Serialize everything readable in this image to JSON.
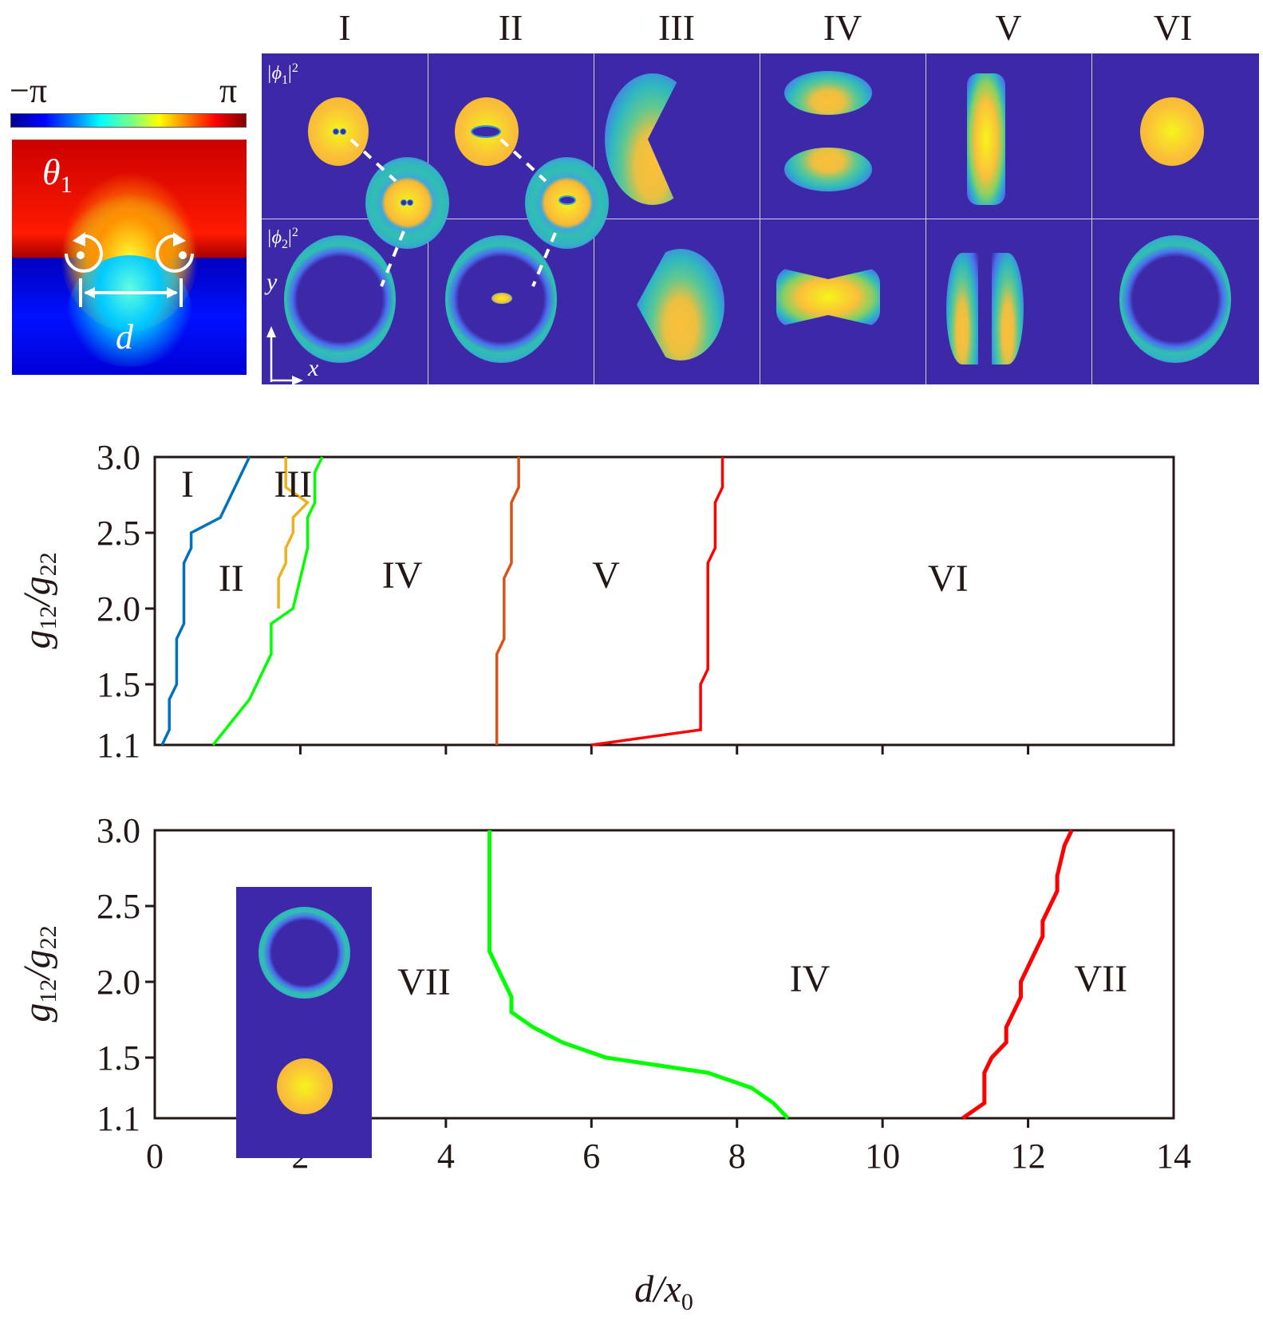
{
  "phase_panel": {
    "colorbar_min_label": "−π",
    "colorbar_max_label": "π",
    "theta_label": "θ",
    "theta_subscript": "1",
    "distance_label": "d",
    "colormap": [
      "#00008f",
      "#0000ff",
      "#0080ff",
      "#00ffff",
      "#80ff80",
      "#ffff00",
      "#ff8000",
      "#ff0000",
      "#800000"
    ]
  },
  "density_grid": {
    "columns": [
      "I",
      "II",
      "III",
      "IV",
      "V",
      "VI"
    ],
    "row_labels": [
      {
        "base": "|ϕ",
        "sub": "1",
        "suffix": "|",
        "sup": "2"
      },
      {
        "base": "|ϕ",
        "sub": "2",
        "suffix": "|",
        "sup": "2"
      }
    ],
    "axis_y_label": "y",
    "axis_x_label": "x",
    "background_color": "#3d28a8"
  },
  "chart_data": [
    {
      "type": "line",
      "title": "",
      "xlabel": "d/x0",
      "ylabel": "g12/g22",
      "xlim": [
        0,
        14
      ],
      "ylim": [
        1.1,
        3.0
      ],
      "xticks": [
        0,
        2,
        4,
        6,
        8,
        10,
        12,
        14
      ],
      "yticks": [
        1.1,
        1.5,
        2.0,
        2.5,
        3.0
      ],
      "ytick_labels": [
        "1.1",
        "1.5",
        "2.0",
        "2.5",
        "3.0"
      ],
      "grid": false,
      "series": [
        {
          "name": "I-II boundary",
          "color": "#0072bd",
          "x": [
            0.1,
            0.2,
            0.2,
            0.3,
            0.3,
            0.4,
            0.4,
            0.5,
            0.5,
            0.9,
            1.3
          ],
          "y": [
            1.1,
            1.2,
            1.4,
            1.5,
            1.8,
            1.9,
            2.3,
            2.4,
            2.5,
            2.6,
            3.0
          ]
        },
        {
          "name": "II-III boundary",
          "color": "#edb120",
          "x": [
            1.7,
            1.7,
            1.8,
            1.8,
            1.9,
            1.9,
            2.1,
            1.8,
            1.8
          ],
          "y": [
            2.0,
            2.2,
            2.3,
            2.4,
            2.5,
            2.6,
            2.7,
            2.8,
            3.0
          ]
        },
        {
          "name": "III-IV boundary",
          "color": "#00ff00",
          "x": [
            0.8,
            1.3,
            1.6,
            1.6,
            1.9,
            2.0,
            2.1,
            2.1,
            2.2,
            2.2,
            2.3
          ],
          "y": [
            1.1,
            1.4,
            1.7,
            1.9,
            2.0,
            2.2,
            2.4,
            2.6,
            2.7,
            2.9,
            3.0
          ]
        },
        {
          "name": "IV-V boundary",
          "color": "#d95319",
          "x": [
            4.7,
            4.7,
            4.8,
            4.8,
            4.9,
            4.9,
            5.0,
            5.0
          ],
          "y": [
            1.1,
            1.7,
            1.8,
            2.2,
            2.3,
            2.7,
            2.8,
            3.0
          ]
        },
        {
          "name": "V-VI boundary",
          "color": "#ff0000",
          "x": [
            6.0,
            7.5,
            7.5,
            7.6,
            7.6,
            7.7,
            7.7,
            7.8,
            7.8
          ],
          "y": [
            1.1,
            1.2,
            1.5,
            1.6,
            2.3,
            2.4,
            2.7,
            2.8,
            3.0
          ]
        }
      ],
      "region_labels": [
        {
          "text": "I",
          "x": 0.45,
          "y": 2.82
        },
        {
          "text": "II",
          "x": 1.05,
          "y": 2.2
        },
        {
          "text": "III",
          "x": 1.9,
          "y": 2.82
        },
        {
          "text": "IV",
          "x": 3.4,
          "y": 2.22
        },
        {
          "text": "V",
          "x": 6.2,
          "y": 2.22
        },
        {
          "text": "VI",
          "x": 10.9,
          "y": 2.2
        }
      ]
    },
    {
      "type": "line",
      "title": "",
      "xlabel": "d/x0",
      "ylabel": "g12/g22",
      "xlim": [
        0,
        14
      ],
      "ylim": [
        1.1,
        3.0
      ],
      "xticks": [
        0,
        2,
        4,
        6,
        8,
        10,
        12,
        14
      ],
      "xtick_labels": [
        "0",
        "2",
        "4",
        "6",
        "8",
        "10",
        "12",
        "14"
      ],
      "yticks": [
        1.1,
        1.5,
        2.0,
        2.5,
        3.0
      ],
      "ytick_labels": [
        "1.1",
        "1.5",
        "2.0",
        "2.5",
        "3.0"
      ],
      "grid": false,
      "series": [
        {
          "name": "VII-IV boundary",
          "color": "#00ff00",
          "x": [
            4.6,
            4.6,
            4.9,
            4.9,
            5.2,
            5.6,
            6.2,
            7.6,
            8.2,
            8.5,
            8.7
          ],
          "y": [
            3.0,
            2.2,
            1.9,
            1.8,
            1.7,
            1.6,
            1.5,
            1.4,
            1.3,
            1.2,
            1.1
          ]
        },
        {
          "name": "IV-VII boundary",
          "color": "#ff0000",
          "x": [
            11.1,
            11.4,
            11.4,
            11.5,
            11.7,
            11.7,
            11.9,
            11.9,
            12.2,
            12.2,
            12.4,
            12.4,
            12.5,
            12.6
          ],
          "y": [
            1.1,
            1.2,
            1.4,
            1.5,
            1.6,
            1.7,
            1.9,
            2.0,
            2.3,
            2.4,
            2.6,
            2.7,
            2.9,
            3.0
          ]
        }
      ],
      "region_labels": [
        {
          "text": "VII",
          "x": 3.7,
          "y": 2.0
        },
        {
          "text": "IV",
          "x": 9.0,
          "y": 2.02
        },
        {
          "text": "VII",
          "x": 13.0,
          "y": 2.02
        }
      ]
    }
  ]
}
